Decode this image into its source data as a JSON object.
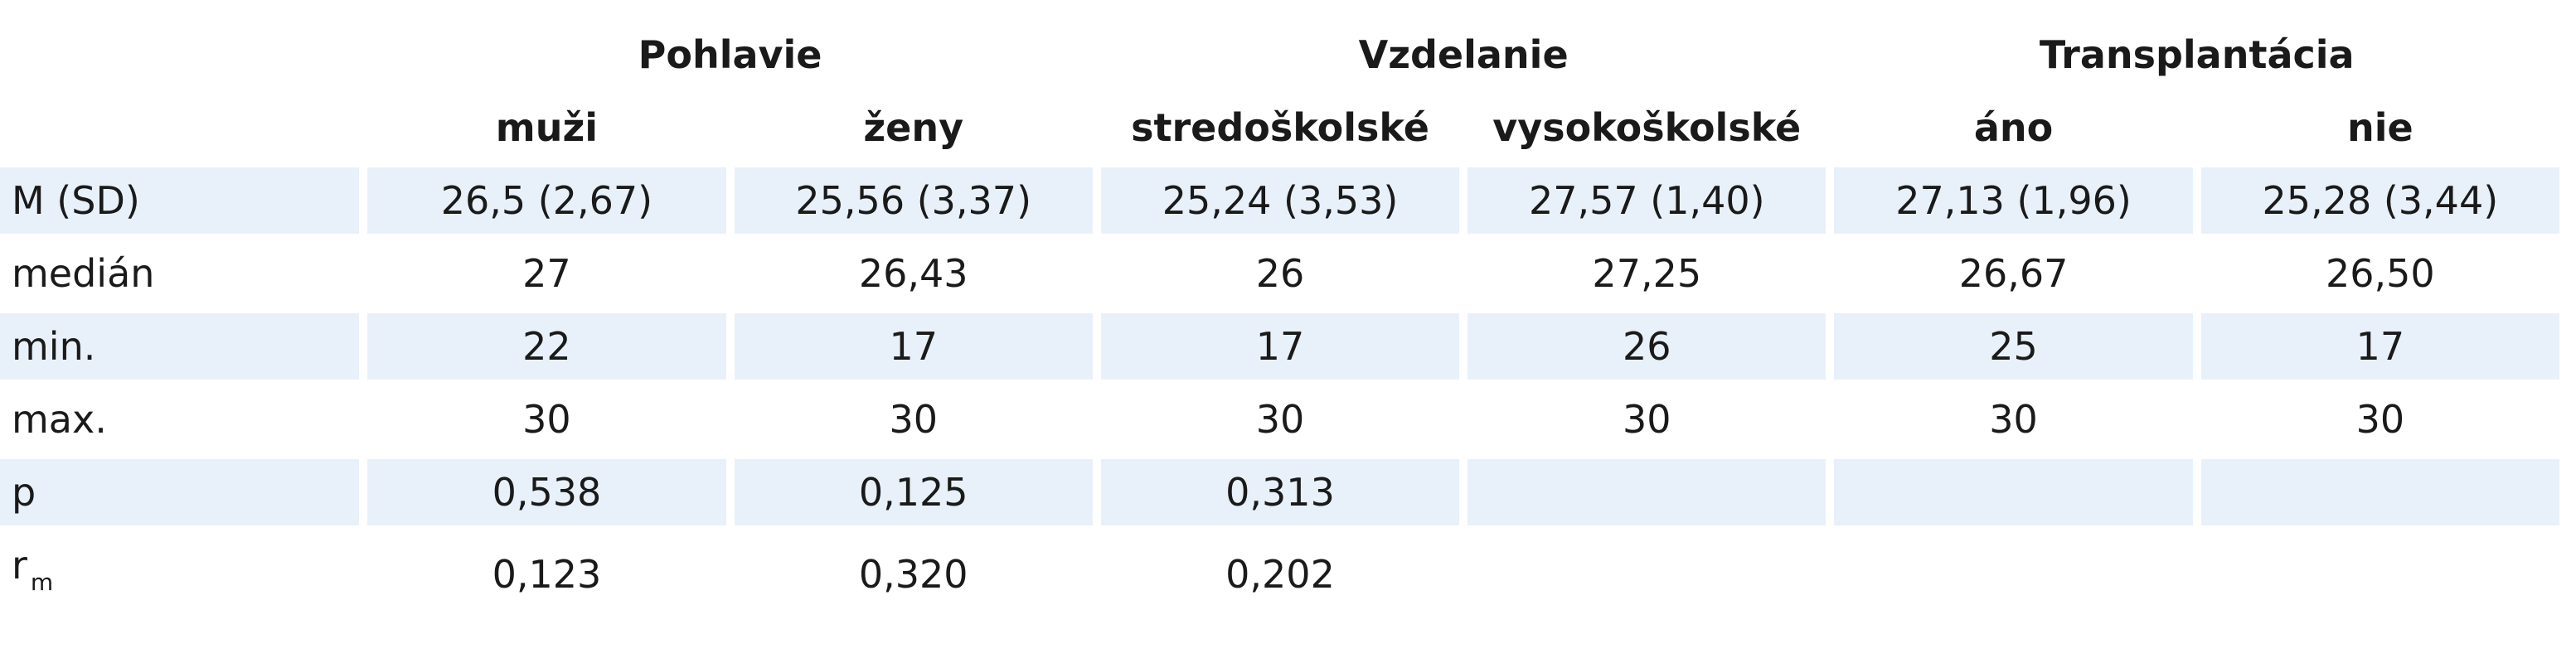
{
  "groups": [
    {
      "label": "Pohlavie",
      "subs": [
        "muži",
        "ženy"
      ]
    },
    {
      "label": "Vzdelanie",
      "subs": [
        "stredoškolské",
        "vysokoškolské"
      ]
    },
    {
      "label": "Transplantácia",
      "subs": [
        "áno",
        "nie"
      ]
    }
  ],
  "rows": [
    {
      "label": "M (SD)",
      "cells": [
        "26,5 (2,67)",
        "25,56 (3,37)",
        "25,24 (3,53)",
        "27,57 (1,40)",
        "27,13 (1,96)",
        "25,28 (3,44)"
      ]
    },
    {
      "label": "medián",
      "cells": [
        "27",
        "26,43",
        "26",
        "27,25",
        "26,67",
        "26,50"
      ]
    },
    {
      "label": "min.",
      "cells": [
        "22",
        "17",
        "17",
        "26",
        "25",
        "17"
      ]
    },
    {
      "label": "max.",
      "cells": [
        "30",
        "30",
        "30",
        "30",
        "30",
        "30"
      ]
    },
    {
      "label": "p",
      "cells": [
        "0,538",
        "0,125",
        "0,313",
        "",
        "",
        ""
      ]
    },
    {
      "label": "r",
      "label_sub": "m",
      "cells": [
        "0,123",
        "0,320",
        "0,202",
        "",
        "",
        ""
      ]
    }
  ],
  "colors": {
    "row_shade": "#e8f1fa",
    "text": "#1a1a1a"
  }
}
